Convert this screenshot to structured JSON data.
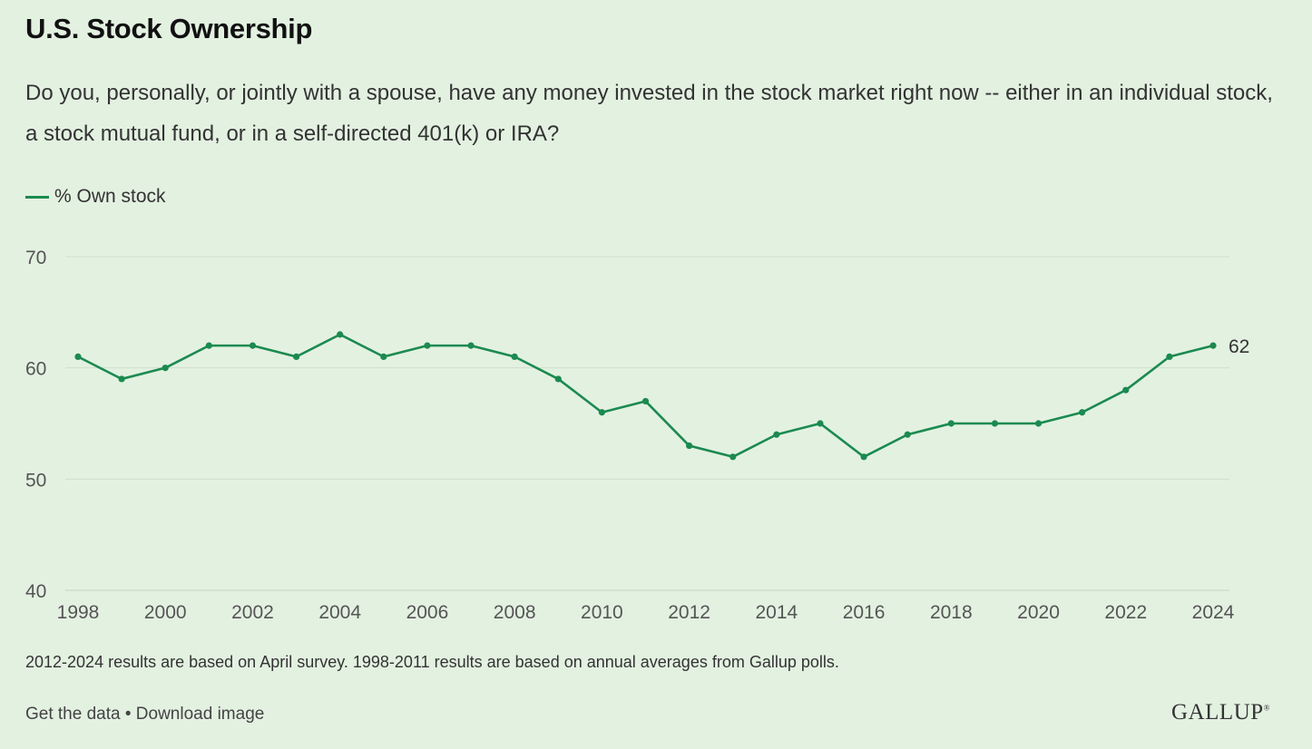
{
  "header": {
    "title": "U.S. Stock Ownership",
    "question": "Do you, personally, or jointly with a spouse, have any money invested in the stock market right now -- either in an individual stock, a stock mutual fund, or in a self-directed 401(k) or IRA?"
  },
  "chart_data": {
    "type": "line",
    "x": [
      1998,
      1999,
      2000,
      2001,
      2002,
      2003,
      2004,
      2005,
      2006,
      2007,
      2008,
      2009,
      2010,
      2011,
      2012,
      2013,
      2014,
      2015,
      2016,
      2017,
      2018,
      2019,
      2020,
      2021,
      2022,
      2023,
      2024
    ],
    "series": [
      {
        "name": "% Own stock",
        "color": "#1b8a50",
        "values": [
          61,
          59,
          60,
          62,
          62,
          61,
          63,
          61,
          62,
          62,
          61,
          59,
          56,
          57,
          53,
          52,
          54,
          55,
          52,
          54,
          55,
          55,
          55,
          56,
          58,
          61,
          62
        ]
      }
    ],
    "ylim": [
      40,
      70
    ],
    "yticks": [
      40,
      50,
      60,
      70
    ],
    "xticks": [
      1998,
      2000,
      2002,
      2004,
      2006,
      2008,
      2010,
      2012,
      2014,
      2016,
      2018,
      2020,
      2022,
      2024
    ],
    "end_label": "62",
    "grid": true,
    "legend": "top-left"
  },
  "footer": {
    "note": "2012-2024 results are based on April survey. 1998-2011 results are based on annual averages from Gallup polls.",
    "get_data": "Get the data",
    "separator": " • ",
    "download": "Download image",
    "brand": "GALLUP",
    "brand_mark": "®"
  }
}
